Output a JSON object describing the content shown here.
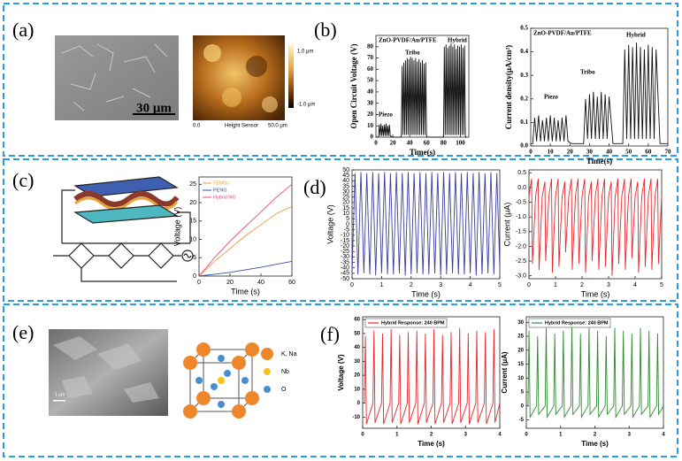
{
  "panel_labels": [
    "(a)",
    "(b)",
    "(c)",
    "(d)",
    "(e)",
    "(f)"
  ],
  "images": {
    "sem_scale": "30 μm",
    "afm_max": "1.0 μm",
    "afm_min": "-1.0 μm",
    "afm_x0": "0.0",
    "afm_caption": "Height Sensor",
    "afm_x1": "50.0 μm",
    "e_sem_scale": "1 μm",
    "crystal_legend": [
      "K, Na",
      "Nb",
      "O"
    ]
  },
  "chart_data": [
    {
      "type": "line",
      "subtitle": "ZnO-PVDF/Au/PTFE",
      "annotations": [
        "Piezo",
        "Tribo",
        "Hybrid"
      ],
      "xlabel": "Time(s)",
      "ylabel": "Open Circuit Voltage (V)",
      "xlim": [
        0,
        110
      ],
      "xticks": [
        0,
        20,
        40,
        60,
        80,
        100
      ],
      "ylim": [
        0,
        90
      ],
      "yticks": [
        0,
        10,
        20,
        30,
        40,
        50,
        60,
        70,
        80
      ],
      "x": [
        0,
        3,
        4,
        5,
        6,
        7,
        8,
        9,
        10,
        11,
        12,
        13,
        14,
        15,
        16,
        17,
        20,
        30,
        31,
        32,
        33,
        34,
        35,
        36,
        37,
        38,
        39,
        40,
        41,
        42,
        43,
        44,
        45,
        46,
        47,
        48,
        49,
        50,
        51,
        52,
        53,
        54,
        55,
        56,
        57,
        58,
        59,
        60,
        62,
        80,
        81,
        82,
        83,
        84,
        85,
        86,
        87,
        88,
        89,
        90,
        91,
        92,
        93,
        94,
        95,
        96,
        97,
        98,
        99,
        100,
        101,
        102,
        103,
        104,
        105,
        106,
        108
      ],
      "series": [
        {
          "color": "#111111",
          "values": [
            0,
            0,
            11,
            1,
            12,
            1,
            10,
            1,
            11,
            1,
            12,
            1,
            10,
            1,
            11,
            1,
            0,
            0,
            63,
            2,
            66,
            2,
            68,
            2,
            70,
            2,
            69,
            2,
            71,
            2,
            70,
            2,
            68,
            2,
            70,
            2,
            67,
            2,
            69,
            2,
            66,
            2,
            68,
            2,
            65,
            2,
            66,
            0,
            0,
            0,
            80,
            2,
            82,
            2,
            79,
            2,
            81,
            2,
            83,
            2,
            80,
            2,
            82,
            2,
            78,
            2,
            81,
            2,
            80,
            2,
            82,
            2,
            79,
            2,
            81,
            0,
            0
          ]
        }
      ]
    },
    {
      "type": "line",
      "subtitle": "ZnO-PVDF/Au/PTFE",
      "annotations": [
        "Piezo",
        "Tribo",
        "Hybrid"
      ],
      "xlabel": "Time(s)",
      "ylabel": "Current density(μA/cm²)",
      "xlim": [
        0,
        70
      ],
      "xticks": [
        0,
        10,
        20,
        30,
        40,
        50,
        60,
        70
      ],
      "ylim": [
        0,
        0.5
      ],
      "yticks": [
        {
          "value": 0,
          "label": "0.0"
        },
        0.1,
        0.2,
        0.3,
        0.4,
        0.5
      ],
      "x": [
        0,
        1,
        2,
        3,
        4,
        5,
        6,
        7,
        8,
        9,
        10,
        11,
        12,
        13,
        14,
        15,
        16,
        17,
        18,
        19,
        21,
        27,
        28,
        29,
        30,
        31,
        32,
        33,
        34,
        35,
        36,
        37,
        38,
        39,
        40,
        42,
        47,
        48,
        49,
        50,
        51,
        52,
        53,
        54,
        55,
        56,
        57,
        58,
        59,
        60,
        61,
        62,
        63,
        64,
        66,
        70
      ],
      "series": [
        {
          "color": "#111111",
          "values": [
            0.01,
            0.01,
            0.12,
            0.02,
            0.13,
            0.02,
            0.11,
            0.02,
            0.12,
            0.02,
            0.13,
            0.02,
            0.12,
            0.02,
            0.11,
            0.02,
            0.12,
            0.02,
            0.13,
            0.02,
            0.01,
            0.01,
            0.2,
            0.03,
            0.22,
            0.03,
            0.23,
            0.03,
            0.21,
            0.03,
            0.23,
            0.03,
            0.22,
            0.03,
            0.21,
            0.01,
            0.01,
            0.41,
            0.03,
            0.43,
            0.03,
            0.42,
            0.03,
            0.44,
            0.03,
            0.42,
            0.03,
            0.41,
            0.03,
            0.43,
            0.03,
            0.42,
            0.03,
            0.41,
            0.01,
            0.01
          ]
        }
      ]
    },
    {
      "type": "line",
      "xlabel": "Time (s)",
      "ylabel": "Voltage (V)",
      "xlim": [
        0,
        60
      ],
      "xticks": [
        0,
        20,
        40,
        60
      ],
      "ylim": [
        0,
        27
      ],
      "yticks": [
        0,
        5,
        10,
        15,
        20,
        25
      ],
      "x": [
        0,
        10,
        20,
        30,
        40,
        50,
        60
      ],
      "series": [
        {
          "name": "TENGs",
          "color": "#f39a3d",
          "values": [
            0,
            4,
            7.5,
            11,
            14,
            17,
            19
          ]
        },
        {
          "name": "PENG",
          "color": "#3a4fa8",
          "values": [
            0,
            0.5,
            1,
            1.7,
            2.4,
            3.2,
            4
          ]
        },
        {
          "name": "Hybrid NG",
          "color": "#e64a7a",
          "values": [
            0,
            5,
            9.5,
            13.5,
            17.5,
            21.5,
            25
          ]
        }
      ]
    },
    {
      "type": "line",
      "xlabel": "Time (s)",
      "ylabel": "Voltage (V)",
      "xlim": [
        0,
        5
      ],
      "xticks": [
        0,
        1,
        2,
        3,
        4,
        5
      ],
      "ylim": [
        -50,
        50
      ],
      "yticks": [
        -50,
        -45,
        -40,
        -35,
        -30,
        -25,
        -20,
        -15,
        -10,
        -5,
        0,
        5,
        10,
        15,
        20,
        25,
        30,
        35,
        40,
        45,
        50
      ],
      "x": [
        0,
        0.1,
        0.2,
        0.3,
        0.4,
        0.5,
        0.6,
        0.7,
        0.8,
        0.9,
        1,
        1.1,
        1.2,
        1.3,
        1.4,
        1.5,
        1.6,
        1.7,
        1.8,
        1.9,
        2,
        2.1,
        2.2,
        2.3,
        2.4,
        2.5,
        2.6,
        2.7,
        2.8,
        2.9,
        3,
        3.1,
        3.2,
        3.3,
        3.4,
        3.5,
        3.6,
        3.7,
        3.8,
        3.9,
        4,
        4.1,
        4.2,
        4.3,
        4.4,
        4.5,
        4.6,
        4.7,
        4.8,
        4.9,
        5
      ],
      "series": [
        {
          "color": "#3c3ca0",
          "values": [
            -44,
            47,
            -46,
            48,
            -45,
            47,
            -46,
            48,
            -47,
            47,
            -45,
            48,
            -46,
            47,
            -46,
            48,
            -45,
            47,
            -47,
            48,
            -46,
            47,
            -45,
            48,
            -46,
            47,
            -46,
            48,
            -45,
            47,
            -47,
            48,
            -46,
            47,
            -45,
            48,
            -46,
            47,
            -46,
            48,
            -45,
            47,
            -47,
            48,
            -46,
            47,
            -45,
            48,
            -46,
            47,
            -40
          ]
        }
      ]
    },
    {
      "type": "line",
      "xlabel": "Time (s)",
      "ylabel": "Current (μA)",
      "xlim": [
        0,
        5
      ],
      "xticks": [
        0,
        1,
        2,
        3,
        4,
        5
      ],
      "ylim": [
        -3.1,
        0.6
      ],
      "yticks": [
        0.5,
        {
          "value": 0,
          "label": "0.0"
        },
        -0.5,
        {
          "value": -1,
          "label": "-1.0"
        },
        -1.5,
        {
          "value": -2,
          "label": "-2.0"
        },
        -2.5,
        {
          "value": -3,
          "label": "-3.0"
        }
      ],
      "x": [
        0,
        0.1,
        0.13,
        0.25,
        0.35,
        0.38,
        0.5,
        0.6,
        0.63,
        0.75,
        0.85,
        0.88,
        1,
        1.1,
        1.13,
        1.25,
        1.35,
        1.38,
        1.5,
        1.6,
        1.63,
        1.75,
        1.85,
        1.88,
        2,
        2.1,
        2.13,
        2.25,
        2.35,
        2.38,
        2.5,
        2.6,
        2.63,
        2.75,
        2.85,
        2.88,
        3,
        3.1,
        3.13,
        3.25,
        3.35,
        3.38,
        3.5,
        3.6,
        3.63,
        3.75,
        3.85,
        3.88,
        4,
        4.1,
        4.13,
        4.25,
        4.35,
        4.38,
        4.5,
        4.6,
        4.63,
        4.75,
        4.85,
        4.88,
        5
      ],
      "series": [
        {
          "color": "#e8262b",
          "values": [
            -0.3,
            0.3,
            -2.6,
            -0.3,
            0.3,
            -2.8,
            -0.3,
            0.2,
            -2.5,
            -0.3,
            0.3,
            -2.9,
            -0.3,
            0.3,
            -2.7,
            -0.3,
            0.2,
            -2.2,
            -0.3,
            0.3,
            -2.8,
            -0.3,
            0.3,
            -2.6,
            -0.3,
            0.3,
            -2.9,
            -0.3,
            0.2,
            -2.5,
            -0.3,
            0.3,
            -2.8,
            -0.3,
            0.3,
            -2.7,
            -0.3,
            0.2,
            -3.0,
            -0.3,
            0.3,
            -2.6,
            -0.3,
            0.3,
            -2.8,
            -0.3,
            0.3,
            -2.4,
            -0.3,
            0.2,
            -2.9,
            -0.3,
            0.3,
            -2.7,
            -0.3,
            0.3,
            -2.8,
            -0.3,
            0.3,
            -2.6,
            -0.3
          ]
        }
      ]
    },
    {
      "type": "line",
      "xlabel": "Time (s)",
      "ylabel": "Voltage (V)",
      "xlim": [
        0,
        4
      ],
      "xticks": [
        0,
        1,
        2,
        3,
        4
      ],
      "ylim": [
        -18,
        62
      ],
      "yticks": [
        -10,
        0,
        10,
        20,
        30,
        40,
        50,
        60
      ],
      "x": [
        0.05,
        0.08,
        0.11,
        0.3,
        0.33,
        0.36,
        0.55,
        0.58,
        0.61,
        0.8,
        0.83,
        0.86,
        1.05,
        1.08,
        1.11,
        1.3,
        1.33,
        1.36,
        1.55,
        1.58,
        1.61,
        1.8,
        1.83,
        1.86,
        2.05,
        2.08,
        2.11,
        2.3,
        2.33,
        2.36,
        2.55,
        2.58,
        2.61,
        2.8,
        2.83,
        2.86,
        3.05,
        3.08,
        3.11,
        3.3,
        3.33,
        3.36,
        3.55,
        3.58,
        3.61,
        3.8,
        3.83,
        3.86,
        4.0
      ],
      "series": [
        {
          "name": "Hybrid Response: 240 BPM",
          "color": "#e8262b",
          "values": [
            0,
            48,
            -15,
            0,
            52,
            -14,
            0,
            50,
            -15,
            0,
            53,
            -14,
            0,
            49,
            -15,
            0,
            51,
            -14,
            0,
            52,
            -15,
            0,
            50,
            -14,
            0,
            53,
            -15,
            0,
            49,
            -14,
            0,
            51,
            -15,
            0,
            54,
            -14,
            0,
            50,
            -15,
            0,
            52,
            -14,
            0,
            51,
            -15,
            0,
            53,
            -14,
            0
          ]
        }
      ]
    },
    {
      "type": "line",
      "xlabel": "Time (s)",
      "ylabel": "Current (μA)",
      "xlim": [
        0,
        4
      ],
      "xticks": [
        0,
        1,
        2,
        3,
        4
      ],
      "ylim": [
        -8,
        32
      ],
      "yticks": [
        -5,
        0,
        5,
        10,
        15,
        20,
        25,
        30
      ],
      "x": [
        0.05,
        0.08,
        0.11,
        0.3,
        0.33,
        0.36,
        0.55,
        0.58,
        0.61,
        0.8,
        0.83,
        0.86,
        1.05,
        1.08,
        1.11,
        1.3,
        1.33,
        1.36,
        1.55,
        1.58,
        1.61,
        1.8,
        1.83,
        1.86,
        2.05,
        2.08,
        2.11,
        2.3,
        2.33,
        2.36,
        2.55,
        2.58,
        2.61,
        2.8,
        2.83,
        2.86,
        3.05,
        3.08,
        3.11,
        3.3,
        3.33,
        3.36,
        3.55,
        3.58,
        3.61,
        3.8,
        3.83,
        3.86,
        4.0
      ],
      "series": [
        {
          "name": "Hybrid Response: 240 BPM",
          "color": "#2e8b2e",
          "values": [
            0,
            27,
            -4,
            0,
            25,
            -3,
            0,
            28,
            -4,
            0,
            26,
            -3,
            0,
            27,
            -4,
            0,
            29,
            -3,
            0,
            26,
            -4,
            0,
            28,
            -3,
            0,
            27,
            -4,
            0,
            25,
            -3,
            0,
            28,
            -4,
            0,
            27,
            -3,
            0,
            26,
            -4,
            0,
            28,
            -3,
            0,
            27,
            -4,
            0,
            26,
            -3,
            0
          ]
        }
      ]
    }
  ]
}
